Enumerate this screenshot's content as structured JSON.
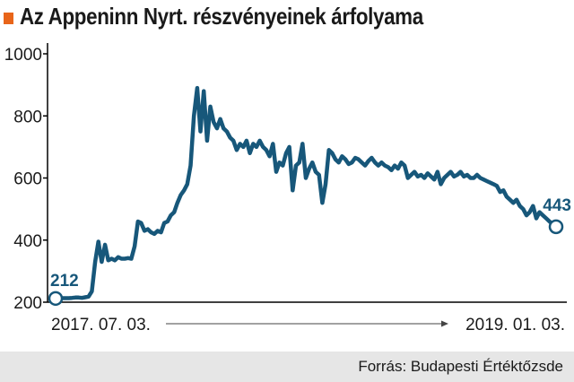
{
  "title": "Az Appeninn Nyrt. részvényeinek árfolyama",
  "source": "Forrás: Budapesti Értéktőzsde",
  "colors": {
    "line": "#17577a",
    "accent": "#e8651a",
    "axis": "#000000",
    "footer_bg": "#e6e6e6"
  },
  "chart_data": {
    "type": "line",
    "title": "Az Appeninn Nyrt. részvényeinek árfolyama",
    "xlabel": "",
    "ylabel": "",
    "ylim": [
      200,
      1000
    ],
    "yticks": [
      200,
      400,
      600,
      800,
      1000
    ],
    "grid": false,
    "x_start_label": "2017. 07. 03.",
    "x_end_label": "2019. 01. 03.",
    "first_value_label": "212",
    "last_value_label": "443",
    "series": [
      {
        "values": [
          212,
          212,
          213,
          213,
          213,
          214,
          215,
          215,
          214,
          216,
          218,
          235,
          330,
          395,
          330,
          385,
          335,
          340,
          335,
          345,
          340,
          340,
          342,
          340,
          380,
          460,
          455,
          430,
          435,
          425,
          420,
          430,
          425,
          455,
          460,
          480,
          490,
          520,
          545,
          560,
          580,
          640,
          800,
          890,
          750,
          880,
          720,
          830,
          780,
          760,
          790,
          760,
          750,
          730,
          720,
          690,
          710,
          700,
          720,
          680,
          710,
          700,
          720,
          700,
          690,
          670,
          710,
          620,
          650,
          640,
          680,
          700,
          560,
          640,
          650,
          710,
          600,
          630,
          650,
          620,
          610,
          520,
          580,
          690,
          680,
          660,
          650,
          670,
          660,
          645,
          650,
          665,
          660,
          650,
          640,
          655,
          665,
          650,
          640,
          650,
          640,
          635,
          625,
          640,
          630,
          650,
          640,
          600,
          610,
          620,
          605,
          610,
          600,
          615,
          605,
          595,
          620,
          580,
          600,
          610,
          620,
          605,
          610,
          620,
          605,
          610,
          600,
          600,
          610,
          600,
          595,
          590,
          585,
          580,
          575,
          555,
          560,
          540,
          530,
          520,
          530,
          510,
          500,
          480,
          490,
          510,
          470,
          490,
          480,
          470,
          460,
          450,
          443
        ]
      }
    ]
  }
}
